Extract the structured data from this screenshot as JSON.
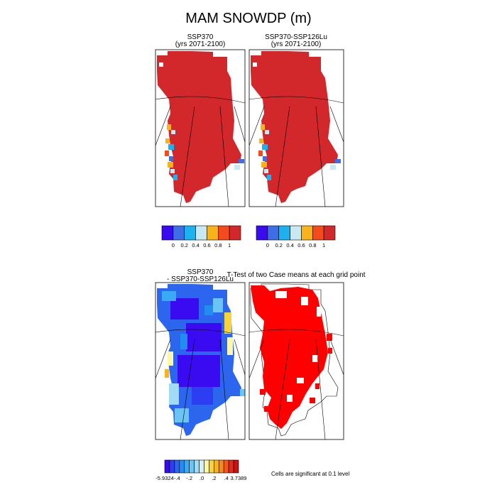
{
  "figure": {
    "title": "MAM SNOWDP (m)"
  },
  "colors": {
    "snow_scale": [
      "#3a0af0",
      "#3d6ee6",
      "#1cb2f0",
      "#c8e8f4",
      "#f8b21c",
      "#f44a1c",
      "#d2282c"
    ],
    "diff_scale": [
      "#3a0af0",
      "#2d3ef2",
      "#2c66ee",
      "#1f8ef0",
      "#3aaaf4",
      "#6ac4f4",
      "#a2dcf4",
      "#d4eefa",
      "#fff7a8",
      "#f8d23a",
      "#f8b21c",
      "#f48a1c",
      "#f4561c",
      "#e82a1c",
      "#c81412"
    ],
    "significance": "#ff0000",
    "background": "#ffffff"
  },
  "chart_data": [
    {
      "type": "heatmap",
      "panel": "top-left",
      "title_line1": "SSP370",
      "title_line2": "(yrs 2071-2100)",
      "variable": "SNOWDP",
      "units": "m",
      "colorbar_ticks": [
        "0",
        "0.2",
        "0.4",
        "0.6",
        "0.8",
        "1"
      ],
      "colorbar_bins": 7,
      "dominant_value": "> 1",
      "coastal_values": "0 to 1"
    },
    {
      "type": "heatmap",
      "panel": "top-right",
      "title_line1": "SSP370-SSP126Lu",
      "title_line2": "(yrs 2071-2100)",
      "variable": "SNOWDP",
      "units": "m",
      "colorbar_ticks": [
        "0",
        "0.2",
        "0.4",
        "0.6",
        "0.8",
        "1"
      ],
      "colorbar_bins": 7,
      "dominant_value": "> 1",
      "coastal_values": "0 to 1"
    },
    {
      "type": "heatmap",
      "panel": "bottom-left",
      "title_line1": "SSP370",
      "title_line2": "- SSP370-SSP126Lu",
      "variable": "SNOWDP difference",
      "units": "m",
      "colorbar_ticks": [
        "-5.9324",
        "-.4",
        "-.2",
        ".0",
        ".2",
        ".4",
        "3.7389"
      ],
      "colorbar_min": -5.9324,
      "colorbar_max": 3.7389,
      "colorbar_bins": 15
    },
    {
      "type": "heatmap",
      "panel": "bottom-right",
      "title": "T-Test of two Case means at each grid point",
      "significance_level": 0.1,
      "footnote": "Cells are significant at 0.1 level"
    }
  ]
}
